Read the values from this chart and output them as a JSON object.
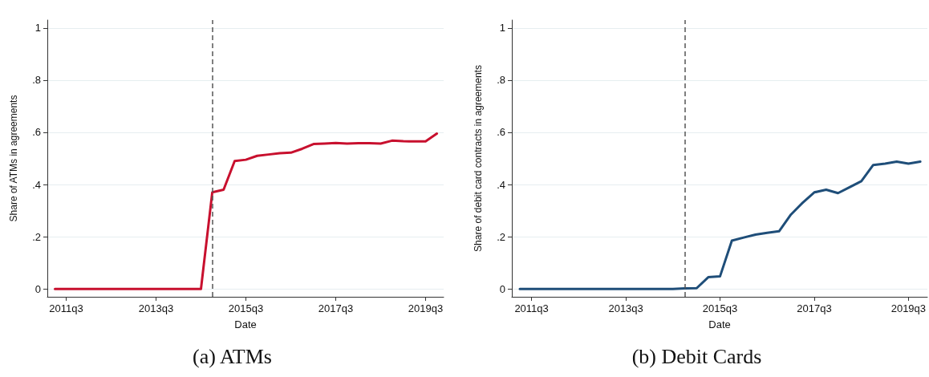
{
  "chart_data": [
    {
      "type": "line",
      "title": "(a) ATMs",
      "xlabel": "Date",
      "ylabel": "Share of ATMs in agreements",
      "x": [
        "2011-04",
        "2011-07",
        "2011-10",
        "2012-01",
        "2012-04",
        "2012-07",
        "2012-10",
        "2013-01",
        "2013-04",
        "2013-07",
        "2013-10",
        "2014-01",
        "2014-04",
        "2014-07",
        "2014-10",
        "2015-01",
        "2015-04",
        "2015-07",
        "2015-10",
        "2016-01",
        "2016-04",
        "2016-07",
        "2016-10",
        "2017-01",
        "2017-04",
        "2017-07",
        "2017-10",
        "2018-01",
        "2018-04",
        "2018-07",
        "2018-10",
        "2019-01",
        "2019-04",
        "2019-07",
        "2019-10"
      ],
      "series": [
        {
          "color": "#c8102e",
          "values": [
            0,
            0,
            0,
            0,
            0,
            0,
            0,
            0,
            0,
            0,
            0,
            0,
            0,
            0,
            0.37,
            0.38,
            0.49,
            0.495,
            0.51,
            0.515,
            0.52,
            0.522,
            0.537,
            0.555,
            0.557,
            0.559,
            0.557,
            0.558,
            0.558,
            0.557,
            0.568,
            0.566,
            0.565,
            0.565,
            0.595
          ]
        }
      ],
      "xlim": [
        "2011-01-29",
        "2019-11-25"
      ],
      "xticks": [
        {
          "value": "2011-07",
          "label": "2011q3"
        },
        {
          "value": "2013-07",
          "label": "2013q3"
        },
        {
          "value": "2015-07",
          "label": "2015q3"
        },
        {
          "value": "2017-07",
          "label": "2017q3"
        },
        {
          "value": "2019-07",
          "label": "2019q3"
        }
      ],
      "ylim": [
        -0.03,
        1.03
      ],
      "yticks": [
        {
          "value": 0,
          "label": "0"
        },
        {
          "value": 0.2,
          "label": ".2"
        },
        {
          "value": 0.4,
          "label": ".4"
        },
        {
          "value": 0.6,
          "label": ".6"
        },
        {
          "value": 0.8,
          "label": ".8"
        },
        {
          "value": 1,
          "label": "1"
        }
      ],
      "grid": "y",
      "marker": "none",
      "line_style": "solid",
      "ref_lines": [
        {
          "axis": "x",
          "value": "2014-10",
          "color": "#555555",
          "line_style": "dashed"
        }
      ]
    },
    {
      "type": "line",
      "title": "(b) Debit Cards",
      "xlabel": "Date",
      "ylabel": "Share of debit card contracts in agreements",
      "x": [
        "2011-04",
        "2011-07",
        "2011-10",
        "2012-01",
        "2012-04",
        "2012-07",
        "2012-10",
        "2013-01",
        "2013-04",
        "2013-07",
        "2013-10",
        "2014-01",
        "2014-04",
        "2014-07",
        "2014-10",
        "2015-01",
        "2015-04",
        "2015-07",
        "2015-10",
        "2016-01",
        "2016-04",
        "2016-07",
        "2016-10",
        "2017-01",
        "2017-04",
        "2017-07",
        "2017-10",
        "2018-01",
        "2018-04",
        "2018-07",
        "2018-10",
        "2019-01",
        "2019-04",
        "2019-07",
        "2019-10"
      ],
      "series": [
        {
          "color": "#1f4e79",
          "values": [
            0,
            0,
            0,
            0,
            0,
            0,
            0,
            0,
            0,
            0,
            0,
            0,
            0,
            0,
            0.002,
            0.003,
            0.045,
            0.048,
            0.185,
            0.197,
            0.208,
            0.215,
            0.221,
            0.285,
            0.33,
            0.37,
            0.38,
            0.367,
            0.39,
            0.413,
            0.475,
            0.48,
            0.488,
            0.48,
            0.488
          ]
        }
      ],
      "xlim": [
        "2011-01-29",
        "2019-11-25"
      ],
      "xticks": [
        {
          "value": "2011-07",
          "label": "2011q3"
        },
        {
          "value": "2013-07",
          "label": "2013q3"
        },
        {
          "value": "2015-07",
          "label": "2015q3"
        },
        {
          "value": "2017-07",
          "label": "2017q3"
        },
        {
          "value": "2019-07",
          "label": "2019q3"
        }
      ],
      "ylim": [
        -0.03,
        1.03
      ],
      "yticks": [
        {
          "value": 0,
          "label": "0"
        },
        {
          "value": 0.2,
          "label": ".2"
        },
        {
          "value": 0.4,
          "label": ".4"
        },
        {
          "value": 0.6,
          "label": ".6"
        },
        {
          "value": 0.8,
          "label": ".8"
        },
        {
          "value": 1,
          "label": "1"
        }
      ],
      "grid": "y",
      "marker": "none",
      "line_style": "solid",
      "ref_lines": [
        {
          "axis": "x",
          "value": "2014-10",
          "color": "#555555",
          "line_style": "dashed"
        }
      ]
    }
  ]
}
